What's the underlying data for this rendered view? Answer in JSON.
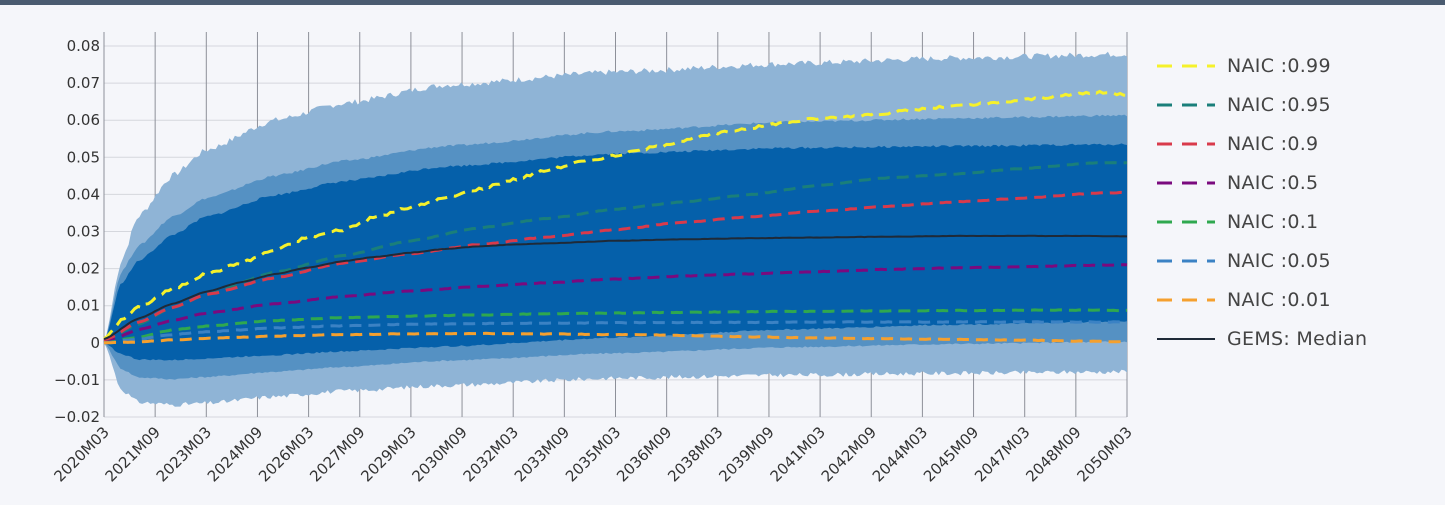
{
  "chart_data": {
    "type": "line",
    "title": "",
    "xlabel": "",
    "ylabel": "",
    "ylim": [
      -0.02,
      0.08
    ],
    "y_ticks": [
      "−0.02",
      "−0.01",
      "0",
      "0.01",
      "0.02",
      "0.03",
      "0.04",
      "0.05",
      "0.06",
      "0.07",
      "0.08"
    ],
    "x_ticks": [
      "2020M03",
      "2021M09",
      "2023M03",
      "2024M09",
      "2026M03",
      "2027M09",
      "2029M03",
      "2030M09",
      "2032M03",
      "2033M09",
      "2035M03",
      "2036M09",
      "2038M03",
      "2039M09",
      "2041M03",
      "2042M09",
      "2044M03",
      "2045M09",
      "2047M03",
      "2048M09",
      "2050M03"
    ],
    "x_years": [
      2020,
      2021.5,
      2023,
      2024.5,
      2026,
      2027.5,
      2029,
      2030.5,
      2032,
      2033.5,
      2035,
      2036.5,
      2038,
      2039.5,
      2041,
      2042.5,
      2044,
      2045.5,
      2047,
      2048.5,
      2050
    ],
    "grid": true,
    "legend_position": "right",
    "bands": [
      {
        "name": "outer",
        "color": "#8fb4d6",
        "x": [
          2020,
          2020.5,
          2021,
          2022,
          2023,
          2025,
          2027,
          2030,
          2035,
          2040,
          2045,
          2050
        ],
        "lower": [
          0,
          -0.0125,
          -0.016,
          -0.0167,
          -0.0163,
          -0.0145,
          -0.013,
          -0.0115,
          -0.0095,
          -0.0087,
          -0.0082,
          -0.0078
        ],
        "upper": [
          0,
          0.022,
          0.034,
          0.045,
          0.052,
          0.06,
          0.0645,
          0.0695,
          0.073,
          0.0752,
          0.0768,
          0.0778
        ]
      },
      {
        "name": "middle",
        "color": "#5591c3",
        "x": [
          2020,
          2020.5,
          2021,
          2022,
          2023,
          2025,
          2027,
          2030,
          2035,
          2040,
          2045,
          2050
        ],
        "lower": [
          0,
          -0.007,
          -0.0093,
          -0.0098,
          -0.0092,
          -0.0078,
          -0.0065,
          -0.0048,
          -0.0028,
          -0.0012,
          -0.0003,
          0.0003
        ],
        "upper": [
          0,
          0.019,
          0.026,
          0.034,
          0.039,
          0.045,
          0.049,
          0.053,
          0.057,
          0.0595,
          0.0605,
          0.0613
        ]
      },
      {
        "name": "inner",
        "color": "#0560aa",
        "x": [
          2020,
          2020.5,
          2021,
          2022,
          2023,
          2025,
          2027,
          2030,
          2035,
          2040,
          2045,
          2050
        ],
        "lower": [
          0,
          -0.003,
          -0.0045,
          -0.0047,
          -0.0042,
          -0.0033,
          -0.0023,
          -0.001,
          0.0014,
          0.0036,
          0.0049,
          0.0057
        ],
        "upper": [
          0,
          0.016,
          0.022,
          0.029,
          0.034,
          0.0398,
          0.0435,
          0.0475,
          0.051,
          0.0525,
          0.053,
          0.0535
        ]
      }
    ],
    "series": [
      {
        "name": "NAIC :0.99",
        "color": "#f5f12b",
        "dash": true,
        "x": [
          2020,
          2020.5,
          2021,
          2022,
          2023,
          2024,
          2025,
          2026,
          2027,
          2028,
          2029,
          2030,
          2031,
          2032,
          2033,
          2034,
          2035,
          2036,
          2037,
          2038,
          2039,
          2040,
          2041,
          2042,
          2043,
          2044,
          2045,
          2046,
          2047,
          2048,
          2049,
          2050
        ],
        "values": [
          0.001,
          0.006,
          0.0095,
          0.0145,
          0.0185,
          0.0215,
          0.025,
          0.0285,
          0.0305,
          0.034,
          0.0365,
          0.039,
          0.0415,
          0.044,
          0.0465,
          0.0488,
          0.0505,
          0.0525,
          0.0545,
          0.0565,
          0.058,
          0.0595,
          0.0605,
          0.0612,
          0.062,
          0.063,
          0.0638,
          0.0645,
          0.0655,
          0.0665,
          0.0675,
          0.067
        ]
      },
      {
        "name": "NAIC :0.95",
        "color": "#1a7f7a",
        "dash": true,
        "x": [
          2020,
          2021,
          2022,
          2023,
          2025,
          2027,
          2029,
          2031,
          2033,
          2035,
          2037,
          2039,
          2041,
          2043,
          2045,
          2047,
          2049,
          2050
        ],
        "values": [
          0.0005,
          0.005,
          0.0095,
          0.013,
          0.019,
          0.0235,
          0.0275,
          0.031,
          0.0335,
          0.036,
          0.038,
          0.04,
          0.0425,
          0.0445,
          0.0455,
          0.047,
          0.0485,
          0.0485
        ]
      },
      {
        "name": "NAIC :0.9",
        "color": "#d93a4b",
        "dash": true,
        "x": [
          2020,
          2021,
          2022,
          2023,
          2025,
          2027,
          2029,
          2031,
          2033,
          2035,
          2037,
          2039,
          2041,
          2043,
          2045,
          2047,
          2049,
          2050
        ],
        "values": [
          0.0005,
          0.0055,
          0.0095,
          0.013,
          0.0175,
          0.0215,
          0.024,
          0.0265,
          0.0285,
          0.0305,
          0.0325,
          0.034,
          0.0355,
          0.0368,
          0.038,
          0.039,
          0.0403,
          0.0405
        ]
      },
      {
        "name": "NAIC :0.5",
        "color": "#7a0a7e",
        "dash": true,
        "x": [
          2020,
          2021,
          2022,
          2023,
          2025,
          2027,
          2029,
          2031,
          2033,
          2035,
          2037,
          2039,
          2041,
          2043,
          2045,
          2047,
          2049,
          2050
        ],
        "values": [
          0,
          0.0035,
          0.006,
          0.008,
          0.0105,
          0.0125,
          0.014,
          0.0152,
          0.0162,
          0.0172,
          0.018,
          0.0186,
          0.0192,
          0.0198,
          0.0202,
          0.0205,
          0.0209,
          0.021
        ]
      },
      {
        "name": "NAIC :0.1",
        "color": "#2fa84f",
        "dash": true,
        "x": [
          2020,
          2021,
          2022,
          2023,
          2025,
          2027,
          2029,
          2031,
          2033,
          2035,
          2037,
          2039,
          2041,
          2043,
          2045,
          2047,
          2049,
          2050
        ],
        "values": [
          0,
          0.0015,
          0.0035,
          0.0045,
          0.006,
          0.0068,
          0.0072,
          0.0075,
          0.0078,
          0.008,
          0.0082,
          0.0084,
          0.0085,
          0.0086,
          0.0087,
          0.0088,
          0.0088,
          0.0087
        ]
      },
      {
        "name": "NAIC :0.05",
        "color": "#3b82c4",
        "dash": true,
        "x": [
          2020,
          2021,
          2022,
          2023,
          2025,
          2027,
          2029,
          2031,
          2033,
          2035,
          2037,
          2039,
          2041,
          2043,
          2045,
          2047,
          2049,
          2050
        ],
        "values": [
          0,
          0.001,
          0.0022,
          0.003,
          0.004,
          0.0046,
          0.005,
          0.0052,
          0.0053,
          0.0054,
          0.0055,
          0.0055,
          0.0056,
          0.0056,
          0.0056,
          0.0056,
          0.0056,
          0.0056
        ]
      },
      {
        "name": "NAIC :0.01",
        "color": "#f5a02e",
        "dash": true,
        "x": [
          2020,
          2021,
          2022,
          2023,
          2025,
          2027,
          2029,
          2031,
          2033,
          2035,
          2037,
          2039,
          2041,
          2043,
          2045,
          2047,
          2049,
          2050
        ],
        "values": [
          0,
          0.0002,
          0.0008,
          0.0012,
          0.0018,
          0.0022,
          0.0024,
          0.0025,
          0.0024,
          0.0022,
          0.002,
          0.0016,
          0.0013,
          0.0011,
          0.0009,
          0.0007,
          0.0004,
          0.0003
        ]
      },
      {
        "name": "GEMS: Median",
        "color": "#1f2a38",
        "dash": false,
        "x": [
          2020,
          2021,
          2022,
          2023,
          2024,
          2025,
          2026,
          2027,
          2028,
          2029,
          2030,
          2031,
          2032,
          2033,
          2035,
          2037,
          2039,
          2041,
          2043,
          2045,
          2047,
          2049,
          2050
        ],
        "values": [
          0.001,
          0.0065,
          0.0105,
          0.0138,
          0.0163,
          0.0185,
          0.0203,
          0.022,
          0.0232,
          0.0243,
          0.0253,
          0.026,
          0.0265,
          0.0268,
          0.0275,
          0.0279,
          0.0282,
          0.0284,
          0.0286,
          0.0288,
          0.0288,
          0.0288,
          0.0287
        ]
      }
    ]
  }
}
